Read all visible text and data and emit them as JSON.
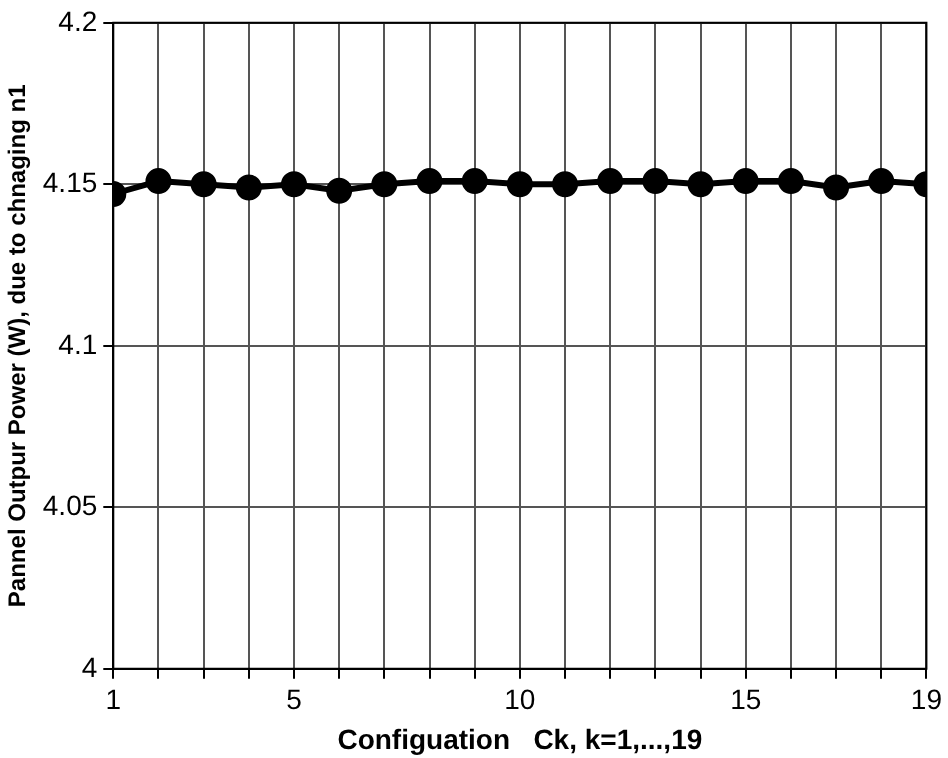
{
  "chart_data": {
    "type": "line",
    "xlabel": "Configuation   Ck, k=1,...,19",
    "ylabel": "Pannel Outpur Power (W), due to chnaging n1",
    "x": [
      1,
      2,
      3,
      4,
      5,
      6,
      7,
      8,
      9,
      10,
      11,
      12,
      13,
      14,
      15,
      16,
      17,
      18,
      19
    ],
    "series": [
      {
        "color": "#000000",
        "values": [
          4.147,
          4.151,
          4.15,
          4.149,
          4.15,
          4.148,
          4.15,
          4.151,
          4.151,
          4.15,
          4.15,
          4.151,
          4.151,
          4.15,
          4.151,
          4.151,
          4.149,
          4.151,
          4.15
        ]
      }
    ],
    "xlim": [
      1,
      19
    ],
    "xticks": [
      1,
      {
        "value": 2,
        "label": null
      },
      {
        "value": 3,
        "label": null
      },
      {
        "value": 4,
        "label": null
      },
      5,
      {
        "value": 6,
        "label": null
      },
      {
        "value": 7,
        "label": null
      },
      {
        "value": 8,
        "label": null
      },
      {
        "value": 9,
        "label": null
      },
      10,
      {
        "value": 11,
        "label": null
      },
      {
        "value": 12,
        "label": null
      },
      {
        "value": 13,
        "label": null
      },
      {
        "value": 14,
        "label": null
      },
      15,
      {
        "value": 16,
        "label": null
      },
      {
        "value": 17,
        "label": null
      },
      {
        "value": 18,
        "label": null
      },
      19
    ],
    "ylim": [
      4,
      4.2
    ],
    "yticks": [
      4,
      4.05,
      4.1,
      4.15,
      4.2
    ],
    "grid": true,
    "legend": false,
    "marker": "circle",
    "line_style": "solid"
  }
}
